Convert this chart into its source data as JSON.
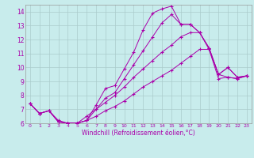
{
  "background_color": "#c8ecec",
  "line_color": "#aa00aa",
  "grid_color": "#aacccc",
  "xlabel": "Windchill (Refroidissement éolien,°C)",
  "xlim": [
    -0.5,
    23.5
  ],
  "ylim": [
    6,
    14.5
  ],
  "yticks": [
    6,
    7,
    8,
    9,
    10,
    11,
    12,
    13,
    14
  ],
  "xticks": [
    0,
    1,
    2,
    3,
    4,
    5,
    6,
    7,
    8,
    9,
    10,
    11,
    12,
    13,
    14,
    15,
    16,
    17,
    18,
    19,
    20,
    21,
    22,
    23
  ],
  "lines": [
    {
      "x": [
        0,
        1,
        2,
        3,
        4,
        5,
        6,
        7,
        8,
        9,
        10,
        11,
        12,
        13,
        14,
        15,
        16,
        17,
        18,
        19,
        20,
        21,
        22,
        23
      ],
      "y": [
        7.4,
        6.7,
        6.9,
        6.1,
        6.0,
        6.0,
        6.2,
        7.3,
        8.5,
        8.7,
        9.9,
        11.1,
        12.7,
        13.9,
        14.2,
        14.4,
        13.1,
        13.1,
        12.5,
        11.3,
        9.5,
        10.0,
        9.3,
        9.4
      ]
    },
    {
      "x": [
        0,
        1,
        2,
        3,
        4,
        5,
        6,
        7,
        8,
        9,
        10,
        11,
        12,
        13,
        14,
        15,
        16,
        17,
        18,
        19,
        20,
        21,
        22,
        23
      ],
      "y": [
        7.4,
        6.7,
        6.9,
        6.1,
        6.0,
        6.0,
        6.2,
        7.0,
        7.8,
        8.2,
        9.2,
        10.2,
        11.2,
        12.2,
        13.2,
        13.8,
        13.1,
        13.1,
        12.5,
        11.4,
        9.5,
        10.0,
        9.3,
        9.4
      ]
    },
    {
      "x": [
        0,
        1,
        2,
        3,
        4,
        5,
        6,
        7,
        8,
        9,
        10,
        11,
        12,
        13,
        14,
        15,
        16,
        17,
        18,
        19,
        20,
        21,
        22,
        23
      ],
      "y": [
        7.4,
        6.7,
        6.9,
        6.1,
        6.0,
        6.0,
        6.5,
        7.0,
        7.5,
        8.0,
        8.6,
        9.3,
        9.9,
        10.5,
        11.1,
        11.6,
        12.2,
        12.5,
        12.5,
        11.4,
        9.5,
        9.3,
        9.2,
        9.4
      ]
    },
    {
      "x": [
        0,
        1,
        2,
        3,
        4,
        5,
        6,
        7,
        8,
        9,
        10,
        11,
        12,
        13,
        14,
        15,
        16,
        17,
        18,
        19,
        20,
        21,
        22,
        23
      ],
      "y": [
        7.4,
        6.7,
        6.9,
        6.2,
        6.0,
        6.0,
        6.2,
        6.5,
        6.9,
        7.2,
        7.6,
        8.1,
        8.6,
        9.0,
        9.4,
        9.8,
        10.3,
        10.8,
        11.3,
        11.3,
        9.2,
        9.3,
        9.2,
        9.4
      ]
    }
  ]
}
